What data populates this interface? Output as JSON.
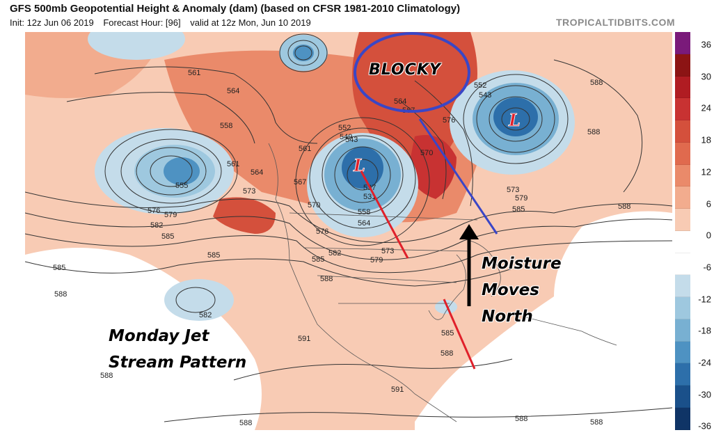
{
  "header": {
    "title": "GFS 500mb Geopotential Height & Anomaly (dam) (based on CFSR 1981-2010 Climatology)",
    "init": "Init: 12z Jun 06 2019",
    "forecast_hour": "Forecast Hour: [96]",
    "valid": "valid at 12z Mon, Jun 10 2019",
    "site": "TROPICALTIDBITS.COM"
  },
  "colorbar": {
    "ticks": [
      "36",
      "30",
      "24",
      "18",
      "12",
      "6",
      "0",
      "-6",
      "-12",
      "-18",
      "-24",
      "-30",
      "-36"
    ],
    "colors": [
      "#7a1a7a",
      "#8c1414",
      "#b01c22",
      "#c83232",
      "#d4503c",
      "#e06a4e",
      "#ea8a6a",
      "#f2ac8e",
      "#f8cbb4",
      "#ffffff",
      "#ffffff",
      "#c4dcea",
      "#9ec8df",
      "#78b0d2",
      "#4e92c2",
      "#2d6faa",
      "#1a508a",
      "#0f3466"
    ]
  },
  "contour_labels": [
    "561",
    "564",
    "558",
    "561",
    "564",
    "555",
    "567",
    "561",
    "576",
    "579",
    "582",
    "585",
    "573",
    "570",
    "576",
    "582",
    "585",
    "588",
    "585",
    "585",
    "582",
    "591",
    "588",
    "588",
    "573",
    "579",
    "564",
    "558",
    "552",
    "549",
    "543",
    "537",
    "531",
    "552",
    "543",
    "564",
    "567",
    "570",
    "576",
    "573",
    "579",
    "585",
    "588",
    "588",
    "588",
    "585",
    "591",
    "588",
    "588",
    "588",
    "588"
  ],
  "lows": [
    "L",
    "L"
  ],
  "annotations": {
    "blocky": "BLOCKY",
    "moisture_line1": "Moisture",
    "moisture_line2": "Moves",
    "moisture_line3": "North",
    "jet_line1": "Monday Jet",
    "jet_line2": "Stream Pattern"
  },
  "colors": {
    "circle": "#3a46c6",
    "red_line": "#e0202a",
    "arrow": "#000000",
    "low_marker": "#e0202a"
  }
}
